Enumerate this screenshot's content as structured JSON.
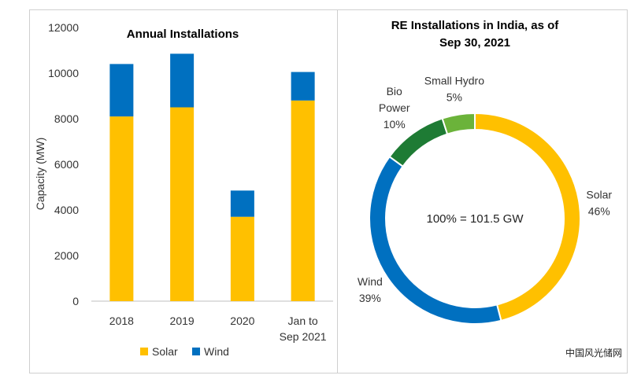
{
  "chart_data": [
    {
      "type": "bar",
      "stacked": true,
      "title": "Annual Installations",
      "xlabel": "",
      "ylabel": "Capacity (MW)",
      "ylim": [
        0,
        12000
      ],
      "yticks": [
        0,
        2000,
        4000,
        6000,
        8000,
        10000,
        12000
      ],
      "grid": false,
      "legend": "bottom",
      "categories": [
        "2018",
        "2019",
        "2020",
        "Jan to Sep 2021"
      ],
      "series": [
        {
          "name": "Solar",
          "color": "#FFC000",
          "values": [
            8100,
            8500,
            3700,
            8800
          ]
        },
        {
          "name": "Wind",
          "color": "#0070C0",
          "values": [
            2300,
            2350,
            1150,
            1250
          ]
        }
      ]
    },
    {
      "type": "pie",
      "donut": true,
      "title": "RE Installations in India, as of Sep 30, 2021",
      "title_lines": [
        "RE Installations in India, as of",
        "Sep 30, 2021"
      ],
      "center_label": "100% = 101.5 GW",
      "slices": [
        {
          "name": "Solar",
          "value": 46,
          "label": "46%",
          "color": "#FFC000"
        },
        {
          "name": "Wind",
          "value": 39,
          "label": "39%",
          "color": "#0070C0"
        },
        {
          "name": "Bio Power",
          "value": 10,
          "label": "10%",
          "color": "#1E7B34"
        },
        {
          "name": "Small Hydro",
          "value": 5,
          "label": "5%",
          "color": "#6BB33A"
        }
      ]
    }
  ],
  "watermark": "中国风光储网"
}
